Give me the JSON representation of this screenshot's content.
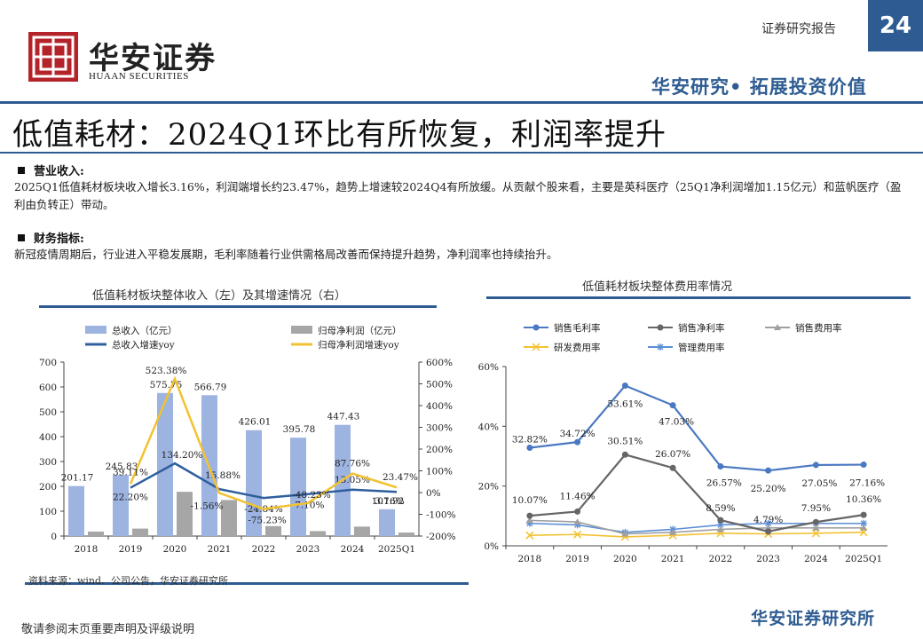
{
  "header": {
    "logo_icon": "huaan-seal-icon",
    "brand_cn": "华安证券",
    "brand_en": "HUAAN SECURITIES",
    "doc_type": "证券研究报告",
    "page_number": "24",
    "slogan": "华安研究• 拓展投资价值",
    "brand_color": "#2e5c92",
    "logo_color": "#b4232a"
  },
  "title": "低值耗材：2024Q1环比有所恢复，利润率提升",
  "sections": [
    {
      "heading": "营业收入:",
      "text": "2025Q1低值耗材板块收入增长3.16%，利润端增长约23.47%，趋势上增速较2024Q4有所放缓。从贡献个股来看，主要是英科医疗（25Q1净利润增加1.15亿元）和蓝帆医疗（盈利由负转正）带动。"
    },
    {
      "heading": "财务指标:",
      "text": "新冠疫情周期后，行业进入平稳发展期，毛利率随着行业供需格局改善而保持提升趋势，净利润率也持续抬升。"
    }
  ],
  "chart_data": [
    {
      "type": "bar",
      "title": "低值耗材板块整体收入（左）及其增速情况（右）",
      "categories": [
        "2018",
        "2019",
        "2020",
        "2021",
        "2022",
        "2023",
        "2024",
        "2025Q1"
      ],
      "ylim": [
        0,
        700
      ],
      "yticks": [
        "0",
        "100",
        "200",
        "300",
        "400",
        "500",
        "600",
        "700"
      ],
      "y2lim": [
        -200,
        600
      ],
      "y2ticks": [
        "-200%",
        "-100%",
        "0%",
        "100%",
        "200%",
        "300%",
        "400%",
        "500%",
        "600%"
      ],
      "legend": [
        "总收入（亿元）",
        "归母净利润（亿元）",
        "总收入增速yoy",
        "归母净利润增速yoy"
      ],
      "series": [
        {
          "name": "总收入（亿元）",
          "kind": "bar",
          "axis": "left",
          "color": "#9db3e0",
          "values": [
            201.17,
            245.83,
            575.75,
            566.79,
            426.01,
            395.78,
            447.43,
            107.92
          ],
          "labels": [
            "201.17",
            "245.83",
            "575.75",
            "566.79",
            "426.01",
            "395.78",
            "447.43",
            "107.92"
          ]
        },
        {
          "name": "归母净利润（亿元）",
          "kind": "bar",
          "axis": "left",
          "color": "#a6a6a6",
          "values": [
            18,
            30,
            178,
            145,
            40,
            20,
            38,
            14
          ]
        },
        {
          "name": "总收入增速yoy",
          "kind": "line",
          "axis": "right",
          "color": "#2f5f9e",
          "values": [
            null,
            22.2,
            134.2,
            15.88,
            -24.84,
            -7.1,
            13.05,
            3.16
          ],
          "labels": [
            "",
            "22.20%",
            "134.20%",
            "15.88%",
            "-24.84%",
            "-7.10%",
            "13.05%",
            "3.16%"
          ]
        },
        {
          "name": "归母净利润增速yoy",
          "kind": "line",
          "axis": "right",
          "color": "#f2c231",
          "values": [
            null,
            39.11,
            523.38,
            -1.56,
            -75.23,
            -48.23,
            87.76,
            23.47
          ],
          "labels": [
            "",
            "39.11%",
            "523.38%",
            "-1.56%",
            "-75.23%",
            "-48.23%",
            "87.76%",
            "23.47%"
          ]
        }
      ]
    },
    {
      "type": "line",
      "title": "低值耗材板块整体费用率情况",
      "categories": [
        "2018",
        "2019",
        "2020",
        "2021",
        "2022",
        "2023",
        "2024",
        "2025Q1"
      ],
      "ylim": [
        0,
        60
      ],
      "yticks": [
        "0%",
        "20%",
        "40%",
        "60%"
      ],
      "legend": [
        "销售毛利率",
        "销售净利率",
        "销售费用率",
        "研发费用率",
        "管理费用率"
      ],
      "series": [
        {
          "name": "销售毛利率",
          "color": "#4a78c2",
          "marker": "circle",
          "values": [
            32.82,
            34.72,
            53.61,
            47.03,
            26.57,
            25.2,
            27.05,
            27.16
          ],
          "labels": [
            "32.82%",
            "34.72%",
            "53.61%",
            "47.03%",
            "26.57%",
            "25.20%",
            "27.05%",
            "27.16%"
          ]
        },
        {
          "name": "销售净利率",
          "color": "#666666",
          "marker": "circle",
          "values": [
            10.07,
            11.46,
            30.51,
            26.07,
            8.59,
            4.79,
            7.95,
            10.36
          ],
          "labels": [
            "10.07%",
            "11.46%",
            "30.51%",
            "26.07%",
            "8.59%",
            "4.79%",
            "7.95%",
            "10.36%"
          ]
        },
        {
          "name": "销售费用率",
          "color": "#a0a0a0",
          "marker": "triangle",
          "values": [
            8.5,
            8.0,
            4.0,
            4.5,
            5.5,
            6.0,
            6.0,
            6.0
          ]
        },
        {
          "name": "研发费用率",
          "color": "#f2c231",
          "marker": "x",
          "values": [
            3.5,
            3.8,
            3.0,
            3.5,
            4.2,
            4.0,
            4.2,
            4.5
          ]
        },
        {
          "name": "管理费用率",
          "color": "#5b8fd6",
          "marker": "star",
          "values": [
            7.5,
            7.0,
            4.5,
            5.5,
            7.0,
            7.5,
            7.5,
            7.5
          ]
        }
      ]
    }
  ],
  "source": "资料来源：wind、公司公告，华安证券研究所",
  "footer": {
    "disclaimer": "敬请参阅末页重要声明及评级说明",
    "institute": "华安证券研究所"
  }
}
